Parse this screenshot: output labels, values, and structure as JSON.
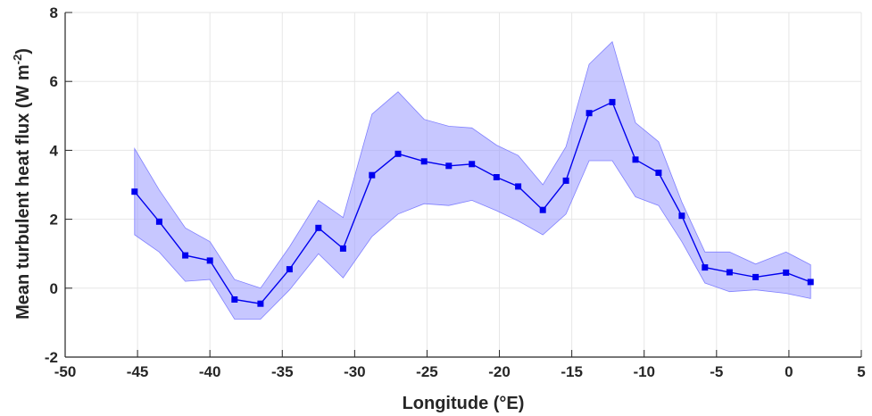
{
  "chart_data": {
    "type": "line",
    "xlabel": "Longitude (°E)",
    "ylabel_main": "Mean turbulent heat flux (W m",
    "ylabel_sup": "-2",
    "ylabel_close": ")",
    "xlim": [
      -50,
      5
    ],
    "ylim": [
      -2,
      8
    ],
    "xticks": [
      -50,
      -45,
      -40,
      -35,
      -30,
      -25,
      -20,
      -15,
      -10,
      -5,
      0,
      5
    ],
    "yticks": [
      -2,
      0,
      2,
      4,
      6,
      8
    ],
    "grid": true,
    "colors": {
      "line": "#0000ee",
      "band": "#9999ff",
      "band_edge": "#8080ff",
      "axis": "#262626",
      "grid": "#e6e6e6"
    },
    "series": [
      {
        "x": [
          -45.2,
          -43.5,
          -41.7,
          -40.0,
          -38.3,
          -36.5,
          -34.5,
          -32.5,
          -30.8,
          -28.8,
          -27.0,
          -25.2,
          -23.5,
          -21.9,
          -20.2,
          -18.7,
          -17.0,
          -15.4,
          -13.8,
          -12.2,
          -10.6,
          -9.0,
          -7.4,
          -5.8,
          -4.1,
          -2.3,
          -0.2,
          1.5
        ],
        "values": [
          2.8,
          1.93,
          0.95,
          0.8,
          -0.33,
          -0.45,
          0.55,
          1.75,
          1.15,
          3.28,
          3.9,
          3.68,
          3.55,
          3.6,
          3.22,
          2.95,
          2.27,
          3.12,
          5.08,
          5.4,
          3.73,
          3.35,
          2.1,
          0.6,
          0.46,
          0.32,
          0.45,
          0.18
        ],
        "upper": [
          4.05,
          2.85,
          1.75,
          1.35,
          0.25,
          0.0,
          1.2,
          2.55,
          2.05,
          5.05,
          5.7,
          4.9,
          4.7,
          4.65,
          4.15,
          3.85,
          3.0,
          4.1,
          6.5,
          7.15,
          4.8,
          4.25,
          2.5,
          1.05,
          1.05,
          0.7,
          1.05,
          0.68
        ],
        "lower": [
          1.55,
          1.05,
          0.2,
          0.25,
          -0.9,
          -0.9,
          -0.05,
          1.0,
          0.3,
          1.5,
          2.15,
          2.45,
          2.4,
          2.55,
          2.25,
          1.95,
          1.55,
          2.15,
          3.7,
          3.7,
          2.65,
          2.4,
          1.35,
          0.15,
          -0.1,
          -0.05,
          -0.15,
          -0.3
        ]
      }
    ]
  }
}
